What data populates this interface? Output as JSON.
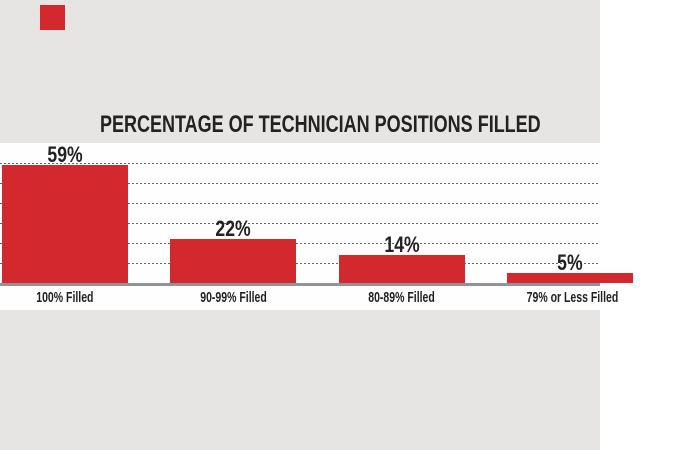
{
  "page": {
    "background_color": "#e6e5e4",
    "decorations": {
      "red_square_color": "#d2282e"
    }
  },
  "chart_data": {
    "type": "bar",
    "title": "PERCENTAGE OF TECHNICIAN POSITIONS FILLED",
    "categories": [
      "100% Filled",
      "90-99% Filled",
      "80-89% Filled",
      "79% or Less Filled"
    ],
    "values": [
      59,
      22,
      14,
      5
    ],
    "value_labels": [
      "59%",
      "22%",
      "14%",
      "5%"
    ],
    "xlabel": "",
    "ylabel": "",
    "ylim": [
      0,
      60
    ],
    "gridlines_pct": [
      10,
      20,
      30,
      40,
      50,
      60
    ],
    "grid_style": "dotted horizontal lines, no y-axis tick labels",
    "legend": "none",
    "bar_color": "#d2282e",
    "plot_background": "#fefefe",
    "text_color": "#242122",
    "gridline_color": "#4c4c52",
    "baseline_color": "#939298",
    "last_label_truncated_at_right_edge": true
  }
}
